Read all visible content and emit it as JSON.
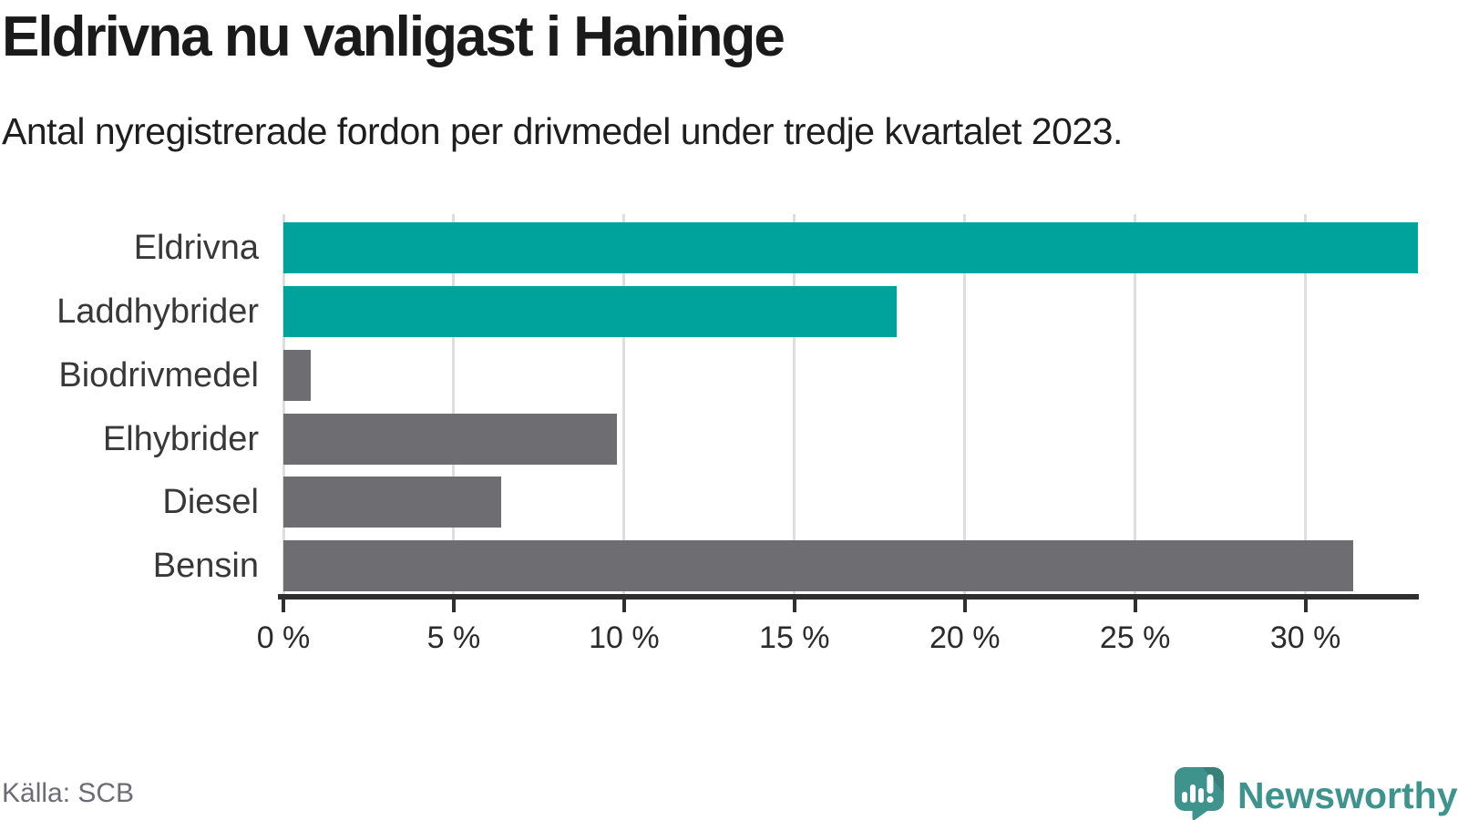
{
  "header": {
    "title": "Eldrivna nu vanligast i Haninge",
    "subtitle": "Antal nyregistrerade fordon per drivmedel under tredje kvartalet 2023."
  },
  "footer": {
    "source": "Källa: SCB",
    "brand": "Newsworthy"
  },
  "icons": {
    "brand_logo": "speech-bubble-bar-chart-icon"
  },
  "colors": {
    "bar_highlight": "#00a39b",
    "bar_default": "#6e6d72",
    "axis": "#2f2f2f",
    "gridline": "#dedede",
    "brand_teal": "#3e948c",
    "title_text": "#1a1a1a",
    "muted_text": "#6d6c76"
  },
  "chart_data": {
    "type": "bar",
    "orientation": "horizontal",
    "title": "Eldrivna nu vanligast i Haninge",
    "subtitle": "Antal nyregistrerade fordon per drivmedel under tredje kvartalet 2023.",
    "categories": [
      "Eldrivna",
      "Laddhybrider",
      "Biodrivmedel",
      "Elhybrider",
      "Diesel",
      "Bensin"
    ],
    "values": [
      33.3,
      18.0,
      0.8,
      9.8,
      6.4,
      31.4
    ],
    "unit": "%",
    "bar_colors": [
      "#00a39b",
      "#00a39b",
      "#6e6d72",
      "#6e6d72",
      "#6e6d72",
      "#6e6d72"
    ],
    "highlighted_categories": [
      "Eldrivna",
      "Laddhybrider"
    ],
    "xlim": [
      0,
      33.3
    ],
    "xticks": [
      0,
      5,
      10,
      15,
      20,
      25,
      30
    ],
    "xtick_suffix": " %",
    "grid": true,
    "legend": false,
    "source": "Källa: SCB"
  }
}
